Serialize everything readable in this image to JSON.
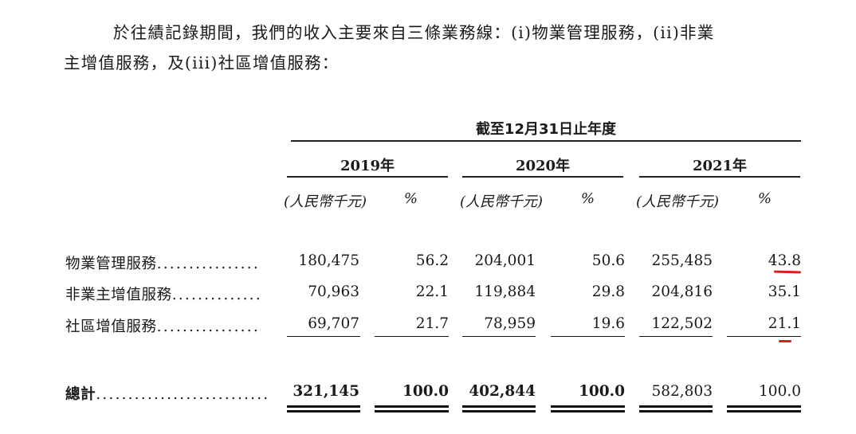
{
  "paragraph": {
    "line1": "於往績記錄期間，我們的收入主要來自三條業務線：(i)物業管理服務，(ii)非業",
    "line2": "主增值服務，及(iii)社區增值服務："
  },
  "table": {
    "period_header": "截至12月31日止年度",
    "years": [
      "2019年",
      "2020年",
      "2021年"
    ],
    "unit_label": "(人民幣千元)",
    "pct_label": "%",
    "rows": [
      {
        "label": "物業管理服務",
        "dots": "................",
        "values": [
          "180,475",
          "56.2",
          "204,001",
          "50.6",
          "255,485",
          "43.8"
        ]
      },
      {
        "label": "非業主增值服務",
        "dots": "..............",
        "values": [
          "70,963",
          "22.1",
          "119,884",
          "29.8",
          "204,816",
          "35.1"
        ]
      },
      {
        "label": "社區增值服務",
        "dots": "................",
        "values": [
          "69,707",
          "21.7",
          "78,959",
          "19.6",
          "122,502",
          "21.1"
        ]
      }
    ],
    "total": {
      "label": "總計",
      "dots": "...........................",
      "values": [
        "321,145",
        "100.0",
        "402,844",
        "100.0",
        "582,803",
        "100.0"
      ]
    }
  },
  "annotations": {
    "color": "#d62020"
  }
}
